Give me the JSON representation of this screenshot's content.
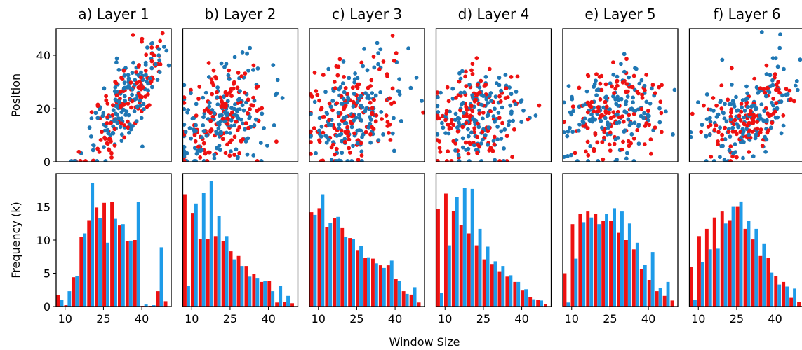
{
  "figure": {
    "xlabel": "Window Size",
    "top_ylabel": "Position",
    "bottom_ylabel": "Frequency (k)",
    "colors": {
      "red": "#ee1111",
      "blue": "#1f77b4",
      "lightblue": "#1e9be8"
    }
  },
  "chart_data": [
    {
      "panel": "a",
      "title": "a) Layer 1",
      "type": "scatter",
      "xlim": [
        5,
        48
      ],
      "ylim": [
        0,
        50
      ],
      "yticks": [
        0,
        20,
        40
      ],
      "grid": false,
      "series": [
        {
          "color": "#ee1111",
          "seed": 11
        },
        {
          "color": "#1f77b4",
          "seed": 12
        }
      ],
      "trend": {
        "cx": 32,
        "sx": 8,
        "slope": 1.3,
        "c0": -18,
        "sy": 8,
        "n_red": 130,
        "n_blue": 150
      }
    },
    {
      "panel": "b",
      "title": "b) Layer 2",
      "type": "scatter",
      "xlim": [
        5,
        48
      ],
      "ylim": [
        0,
        50
      ],
      "yticks": [
        0,
        20,
        40
      ],
      "grid": false,
      "series": [
        {
          "color": "#ee1111",
          "seed": 21
        },
        {
          "color": "#1f77b4",
          "seed": 22
        }
      ],
      "trend": {
        "cx": 20,
        "sx": 9,
        "slope": 0.4,
        "c0": 8,
        "sy": 9,
        "n_red": 140,
        "n_blue": 160
      }
    },
    {
      "panel": "c",
      "title": "c) Layer 3",
      "type": "scatter",
      "xlim": [
        5,
        48
      ],
      "ylim": [
        0,
        50
      ],
      "yticks": [
        0,
        20,
        40
      ],
      "grid": false,
      "series": [
        {
          "color": "#ee1111",
          "seed": 31
        },
        {
          "color": "#1f77b4",
          "seed": 32
        }
      ],
      "trend": {
        "cx": 20,
        "sx": 10,
        "slope": 0.3,
        "c0": 12,
        "sy": 10,
        "n_red": 140,
        "n_blue": 150
      }
    },
    {
      "panel": "d",
      "title": "d) Layer 4",
      "type": "scatter",
      "xlim": [
        5,
        48
      ],
      "ylim": [
        0,
        50
      ],
      "yticks": [
        0,
        20,
        40
      ],
      "grid": false,
      "series": [
        {
          "color": "#ee1111",
          "seed": 41
        },
        {
          "color": "#1f77b4",
          "seed": 42
        }
      ],
      "trend": {
        "cx": 20,
        "sx": 9,
        "slope": 0.2,
        "c0": 13,
        "sy": 9,
        "n_red": 130,
        "n_blue": 150
      }
    },
    {
      "panel": "e",
      "title": "e) Layer 5",
      "type": "scatter",
      "xlim": [
        5,
        48
      ],
      "ylim": [
        0,
        50
      ],
      "yticks": [
        0,
        20,
        40
      ],
      "grid": false,
      "series": [
        {
          "color": "#ee1111",
          "seed": 51
        },
        {
          "color": "#1f77b4",
          "seed": 52
        }
      ],
      "trend": {
        "cx": 24,
        "sx": 9,
        "slope": 0.25,
        "c0": 12,
        "sy": 9,
        "n_red": 130,
        "n_blue": 150
      }
    },
    {
      "panel": "f",
      "title": "f) Layer 6",
      "type": "scatter",
      "xlim": [
        5,
        48
      ],
      "ylim": [
        0,
        50
      ],
      "yticks": [
        0,
        20,
        40
      ],
      "grid": false,
      "series": [
        {
          "color": "#ee1111",
          "seed": 61
        },
        {
          "color": "#1f77b4",
          "seed": 62
        }
      ],
      "trend": {
        "cx": 26,
        "sx": 9,
        "slope": 0.45,
        "c0": 6,
        "sy": 8,
        "n_red": 120,
        "n_blue": 150
      }
    },
    {
      "panel": "a",
      "type": "bar",
      "xlim": [
        6.5,
        51.5
      ],
      "ylim": [
        0,
        20
      ],
      "yticks": [
        0,
        5,
        10,
        15
      ],
      "xticks": [
        10,
        25,
        40
      ],
      "grid": false,
      "x": [
        8,
        11,
        14,
        17,
        20,
        23,
        26,
        29,
        32,
        35,
        38,
        41,
        44,
        47,
        50
      ],
      "series": [
        {
          "color": "#ee1111",
          "values": [
            1.7,
            0.2,
            4.4,
            10.5,
            13.0,
            14.9,
            15.6,
            15.7,
            12.2,
            9.8,
            10.0,
            0.1,
            0.1,
            2.3,
            0.8
          ]
        },
        {
          "color": "#1e9be8",
          "values": [
            1.0,
            2.3,
            4.6,
            11.0,
            18.6,
            13.3,
            9.6,
            13.2,
            12.4,
            9.9,
            15.7,
            0.3,
            0.2,
            8.9,
            0.0
          ]
        }
      ]
    },
    {
      "panel": "b",
      "type": "bar",
      "xlim": [
        6.5,
        51.5
      ],
      "ylim": [
        0,
        20
      ],
      "yticks": [
        0,
        5,
        10,
        15
      ],
      "xticks": [
        10,
        25,
        40
      ],
      "grid": false,
      "x": [
        8,
        11,
        14,
        17,
        20,
        23,
        26,
        29,
        32,
        35,
        38,
        41,
        44,
        47,
        50
      ],
      "series": [
        {
          "color": "#ee1111",
          "values": [
            16.9,
            14.1,
            10.2,
            10.2,
            10.6,
            9.8,
            8.3,
            7.6,
            6.1,
            4.9,
            3.7,
            3.8,
            0.6,
            0.7,
            0.5
          ]
        },
        {
          "color": "#1e9be8",
          "values": [
            3.1,
            15.5,
            17.1,
            18.9,
            13.6,
            10.6,
            7.1,
            6.1,
            4.5,
            4.3,
            3.8,
            2.3,
            3.1,
            1.6,
            0.0
          ]
        }
      ]
    },
    {
      "panel": "c",
      "type": "bar",
      "xlim": [
        6.5,
        51.5
      ],
      "ylim": [
        0,
        20
      ],
      "yticks": [
        0,
        5,
        10,
        15
      ],
      "xticks": [
        10,
        25,
        40
      ],
      "grid": false,
      "x": [
        8,
        11,
        14,
        17,
        20,
        23,
        26,
        29,
        32,
        35,
        38,
        41,
        44,
        47,
        50
      ],
      "series": [
        {
          "color": "#ee1111",
          "values": [
            14.2,
            14.8,
            12.0,
            13.3,
            11.9,
            10.3,
            8.5,
            7.3,
            7.2,
            6.2,
            6.2,
            4.2,
            2.3,
            1.8,
            0.6
          ]
        },
        {
          "color": "#1e9be8",
          "values": [
            13.8,
            16.9,
            12.6,
            13.5,
            10.5,
            10.2,
            9.1,
            7.4,
            6.5,
            5.8,
            6.9,
            3.8,
            1.9,
            2.9,
            0.0
          ]
        }
      ]
    },
    {
      "panel": "d",
      "type": "bar",
      "xlim": [
        6.5,
        51.5
      ],
      "ylim": [
        0,
        20
      ],
      "yticks": [
        0,
        5,
        10,
        15
      ],
      "xticks": [
        10,
        25,
        40
      ],
      "grid": false,
      "x": [
        8,
        11,
        14,
        17,
        20,
        23,
        26,
        29,
        32,
        35,
        38,
        41,
        44,
        47,
        50
      ],
      "series": [
        {
          "color": "#ee1111",
          "values": [
            14.7,
            17.0,
            14.4,
            12.3,
            11.0,
            9.2,
            7.1,
            6.4,
            5.3,
            4.5,
            3.7,
            2.4,
            1.4,
            1.0,
            0.4
          ]
        },
        {
          "color": "#1e9be8",
          "values": [
            2.0,
            9.2,
            16.5,
            17.9,
            17.7,
            11.7,
            9.0,
            6.8,
            6.1,
            4.7,
            3.7,
            2.6,
            1.1,
            0.9,
            0.0
          ]
        }
      ]
    },
    {
      "panel": "e",
      "type": "bar",
      "xlim": [
        6.5,
        51.5
      ],
      "ylim": [
        0,
        20
      ],
      "yticks": [
        0,
        5,
        10,
        15
      ],
      "xticks": [
        10,
        25,
        40
      ],
      "grid": false,
      "x": [
        8,
        11,
        14,
        17,
        20,
        23,
        26,
        29,
        32,
        35,
        38,
        41,
        44,
        47,
        50
      ],
      "series": [
        {
          "color": "#ee1111",
          "values": [
            5.0,
            12.4,
            14.0,
            14.3,
            14.0,
            12.9,
            12.9,
            11.1,
            10.0,
            8.6,
            5.6,
            4.0,
            2.3,
            1.6,
            0.9
          ]
        },
        {
          "color": "#1e9be8",
          "values": [
            0.6,
            7.2,
            12.7,
            13.4,
            12.4,
            13.9,
            14.8,
            14.3,
            12.5,
            9.6,
            6.3,
            8.2,
            2.8,
            3.7,
            0.0
          ]
        }
      ]
    },
    {
      "panel": "f",
      "type": "bar",
      "xlim": [
        6.5,
        51.5
      ],
      "ylim": [
        0,
        20
      ],
      "yticks": [
        0,
        5,
        10,
        15
      ],
      "xticks": [
        10,
        25,
        40
      ],
      "grid": false,
      "x": [
        8,
        11,
        14,
        17,
        20,
        23,
        26,
        29,
        32,
        35,
        38,
        41,
        44,
        47,
        50
      ],
      "series": [
        {
          "color": "#ee1111",
          "values": [
            6.0,
            10.6,
            11.7,
            13.4,
            14.3,
            13.0,
            15.1,
            11.7,
            10.1,
            7.6,
            7.3,
            4.6,
            3.7,
            1.3,
            0.7
          ]
        },
        {
          "color": "#1e9be8",
          "values": [
            1.0,
            6.7,
            8.6,
            8.7,
            12.5,
            15.1,
            15.8,
            12.9,
            11.7,
            9.5,
            5.1,
            3.3,
            3.0,
            2.7,
            0.0
          ]
        }
      ]
    }
  ]
}
